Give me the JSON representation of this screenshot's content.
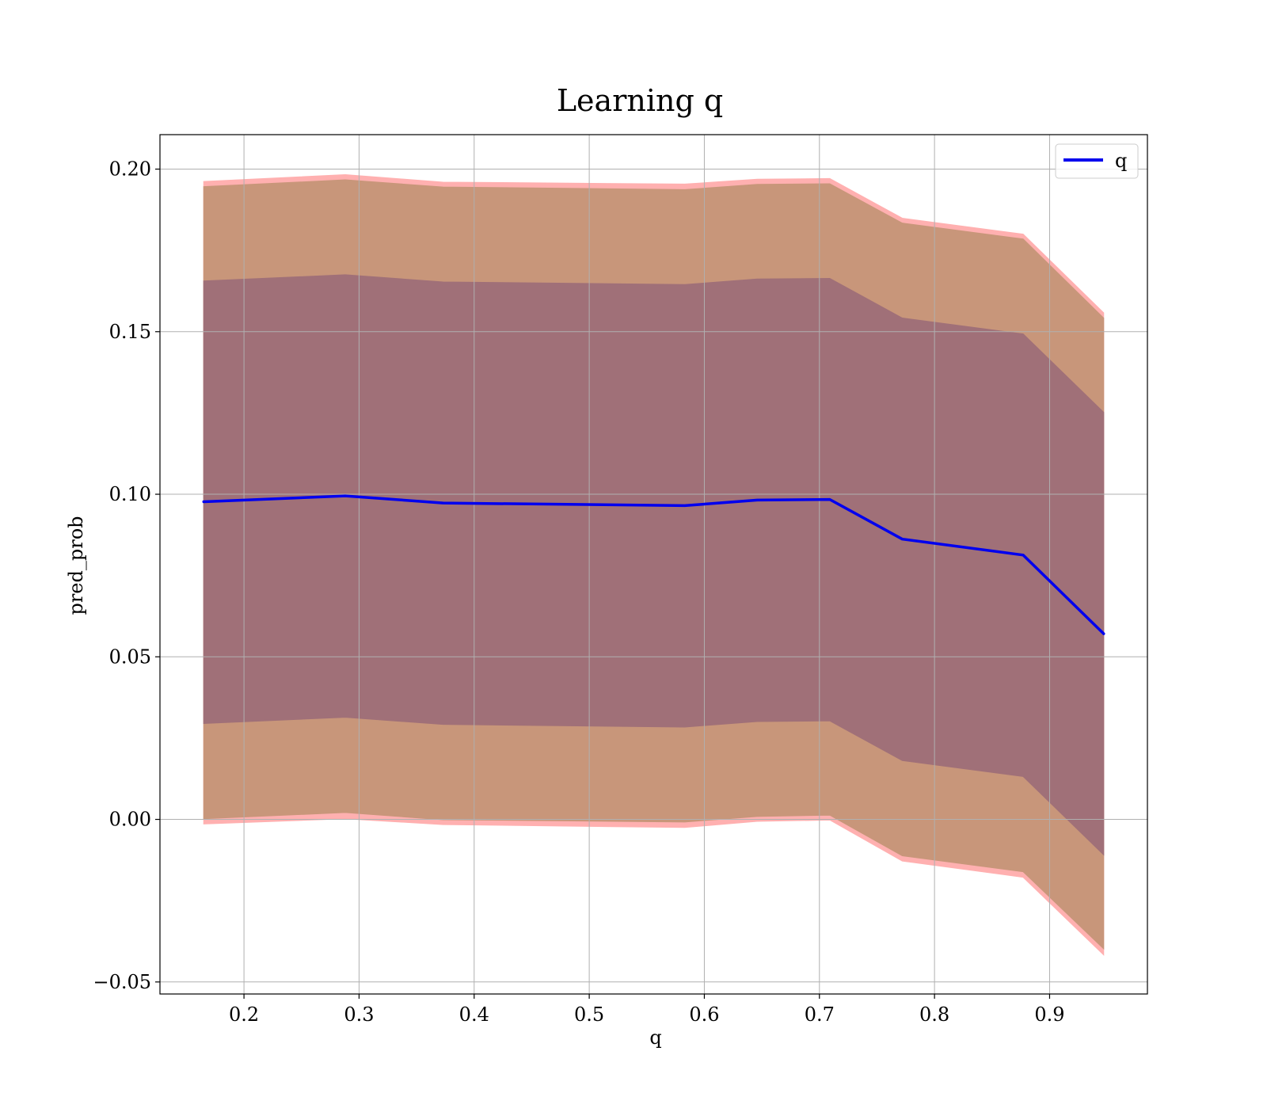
{
  "chart_data": {
    "type": "line",
    "title": "Learning q",
    "xlabel": "q",
    "ylabel": "pred_prob",
    "xlim": [
      0.127,
      0.985
    ],
    "ylim": [
      -0.0537,
      0.2106
    ],
    "x_ticks": [
      0.2,
      0.3,
      0.4,
      0.5,
      0.6,
      0.7,
      0.8,
      0.9
    ],
    "x_tick_labels": [
      "0.2",
      "0.3",
      "0.4",
      "0.5",
      "0.6",
      "0.7",
      "0.8",
      "0.9"
    ],
    "y_ticks": [
      -0.05,
      0.0,
      0.05,
      0.1,
      0.15,
      0.2
    ],
    "y_tick_labels": [
      "−0.05",
      "0.00",
      "0.05",
      "0.10",
      "0.15",
      "0.20"
    ],
    "grid": true,
    "legend_placement": "top-right",
    "x": [
      0.165,
      0.288,
      0.373,
      0.583,
      0.646,
      0.709,
      0.772,
      0.877,
      0.947
    ],
    "series": [
      {
        "name": "q",
        "values": [
          0.0977,
          0.0995,
          0.0973,
          0.0965,
          0.0982,
          0.0984,
          0.0862,
          0.0813,
          0.0571
        ]
      }
    ],
    "bands": [
      {
        "lower": [
          -0.0014,
          0.0002,
          -0.0016,
          -0.0025,
          -0.0006,
          -0.0002,
          -0.0128,
          -0.0178,
          -0.0417
        ],
        "upper": [
          0.1962,
          0.1983,
          0.196,
          0.1954,
          0.1969,
          0.1971,
          0.1849,
          0.18,
          0.1558
        ],
        "color": "#FFB0B0"
      },
      {
        "lower": [
          0.0002,
          0.0021,
          -0.0001,
          -0.0008,
          0.0009,
          0.0013,
          -0.0112,
          -0.0161,
          -0.0398
        ],
        "upper": [
          0.1946,
          0.1967,
          0.1945,
          0.1937,
          0.1953,
          0.1955,
          0.1834,
          0.1785,
          0.1542
        ],
        "color": "#C8967A"
      },
      {
        "lower": [
          0.0295,
          0.0314,
          0.0292,
          0.0284,
          0.0301,
          0.0303,
          0.0181,
          0.0132,
          -0.0109
        ],
        "upper": [
          0.1656,
          0.1675,
          0.1653,
          0.1645,
          0.1662,
          0.1664,
          0.1542,
          0.1493,
          0.1252
        ],
        "color": "#A07078"
      }
    ],
    "colors": {
      "line": "#0000EE",
      "grid": "#B0B0B0",
      "axes": "#000000"
    }
  }
}
